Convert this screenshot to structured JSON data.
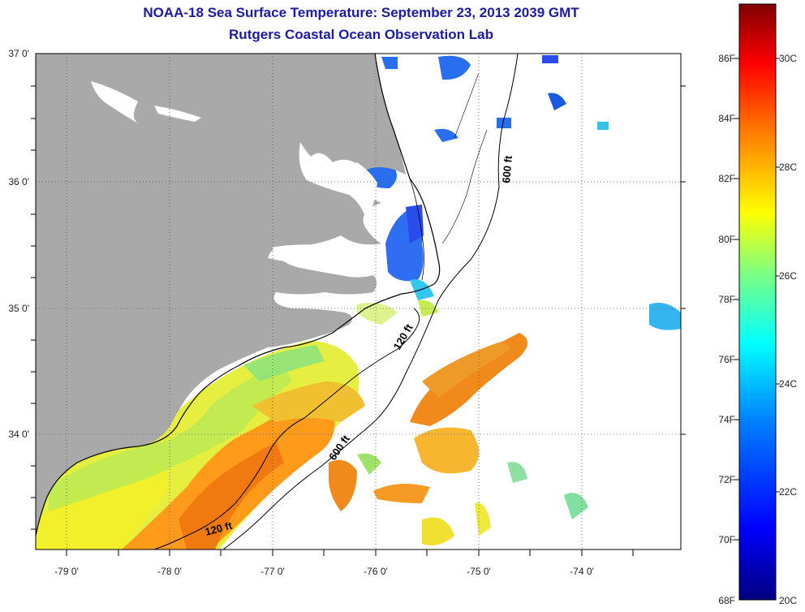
{
  "title": "NOAA-18 Sea Surface Temperature:  September 23, 2013 2039 GMT",
  "subtitle": "Rutgers Coastal Ocean Observation Lab",
  "lat_labels": [
    "37 0'",
    "36 0'",
    "35 0'",
    "34 0'"
  ],
  "lon_labels": [
    "-79 0'",
    "-78 0'",
    "-77 0'",
    "-76 0'",
    "-75 0'",
    "-74 0'"
  ],
  "colorbar": {
    "f_labels": [
      "86F",
      "84F",
      "82F",
      "80F",
      "78F",
      "76F",
      "74F",
      "72F",
      "70F",
      "68F"
    ],
    "c_labels": [
      "30C",
      "28C",
      "26C",
      "24C",
      "22C",
      "20C"
    ],
    "colors": [
      "#00007f",
      "#0000ff",
      "#007fff",
      "#00ffff",
      "#7fff7f",
      "#ffff00",
      "#ff7f00",
      "#ff0000",
      "#7f0000"
    ]
  },
  "isobaths": [
    "600 ft",
    "120 ft",
    "600 ft",
    "120 ft"
  ],
  "colors": {
    "land": "#a9a9a9",
    "coastline": "#000000",
    "title": "#1a1aa8",
    "ocean": "#ffffff"
  }
}
